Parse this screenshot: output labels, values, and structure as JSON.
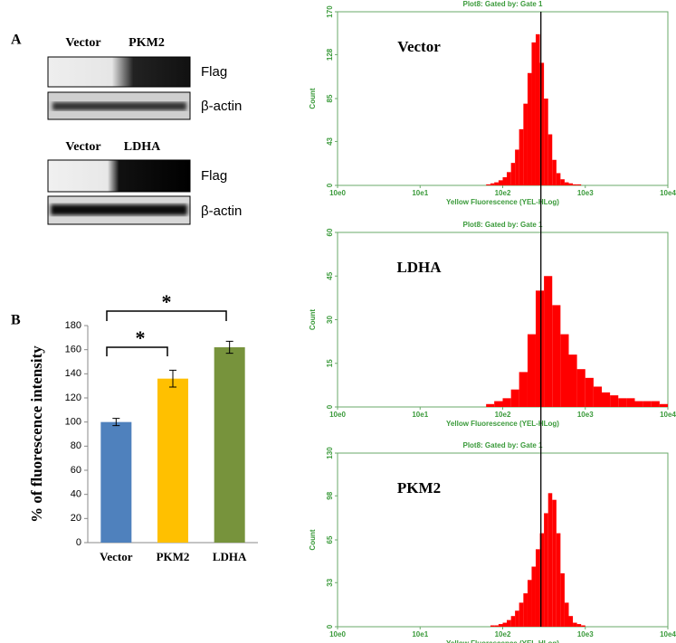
{
  "panels": {
    "a": "A",
    "b": "B"
  },
  "blots": [
    {
      "headers": [
        "Vector",
        "PKM2"
      ],
      "rows": [
        "Flag",
        "β-actin"
      ]
    },
    {
      "headers": [
        "Vector",
        "LDHA"
      ],
      "rows": [
        "Flag",
        "β-actin"
      ]
    }
  ],
  "reference_x": 290,
  "chart_data": [
    {
      "type": "bar",
      "y_label": "% of fluorescence intensity",
      "categories": [
        "Vector",
        "PKM2",
        "LDHA"
      ],
      "values": [
        100,
        136,
        162
      ],
      "errors": [
        3,
        7,
        5
      ],
      "colors": [
        "#4f81bd",
        "#ffc000",
        "#77933c"
      ],
      "ylim": [
        0,
        180
      ],
      "yticks": [
        0,
        20,
        40,
        60,
        80,
        100,
        120,
        140,
        160,
        180
      ],
      "annotations": [
        "*",
        "*"
      ]
    },
    {
      "type": "histogram",
      "title": "Plot8:  Gated by: Gate 1",
      "label": "Vector",
      "x_label": "Yellow Fluorescence (YEL-HLog)",
      "y_label": "Count",
      "x_log": true,
      "color": "#ff0000",
      "xlim": [
        1,
        10000
      ],
      "xticks": [
        {
          "value": 1,
          "label": "10e0"
        },
        {
          "value": 10,
          "label": "10e1"
        },
        {
          "value": 100,
          "label": "10e2"
        },
        {
          "value": 1000,
          "label": "10e3"
        },
        {
          "value": 10000,
          "label": "10e4"
        }
      ],
      "ylim": [
        0,
        170
      ],
      "yticks": [
        0,
        43,
        85,
        128,
        170
      ],
      "bins": [
        63,
        71,
        79,
        89,
        100,
        112,
        126,
        141,
        158,
        178,
        200,
        224,
        251,
        282,
        316,
        355,
        398,
        447,
        501,
        562,
        631,
        708,
        794,
        891,
        1000
      ],
      "counts": [
        1,
        2,
        3,
        5,
        8,
        13,
        22,
        35,
        55,
        80,
        110,
        140,
        148,
        120,
        85,
        50,
        25,
        12,
        6,
        3,
        2,
        1,
        1,
        0
      ]
    },
    {
      "type": "histogram",
      "title": "Plot8:  Gated by: Gate 1",
      "label": "LDHA",
      "x_label": "Yellow Fluorescence (YEL-HLog)",
      "y_label": "Count",
      "x_log": true,
      "color": "#ff0000",
      "xlim": [
        1,
        10000
      ],
      "xticks": [
        {
          "value": 1,
          "label": "10e0"
        },
        {
          "value": 10,
          "label": "10e1"
        },
        {
          "value": 100,
          "label": "10e2"
        },
        {
          "value": 1000,
          "label": "10e3"
        },
        {
          "value": 10000,
          "label": "10e4"
        }
      ],
      "ylim": [
        0,
        60
      ],
      "yticks": [
        0,
        15,
        30,
        45,
        60
      ],
      "bins": [
        63,
        79,
        100,
        126,
        158,
        200,
        251,
        316,
        398,
        501,
        631,
        794,
        1000,
        1259,
        1585,
        1995,
        2512,
        3162,
        3981,
        5012,
        6310,
        7943,
        10000
      ],
      "counts": [
        1,
        2,
        3,
        6,
        12,
        25,
        40,
        45,
        35,
        25,
        18,
        13,
        10,
        7,
        5,
        4,
        3,
        3,
        2,
        2,
        2,
        1
      ]
    },
    {
      "type": "histogram",
      "title": "Plot8:  Gated by: Gate 1",
      "label": "PKM2",
      "x_label": "Yellow Fluorescence (YEL-HLog)",
      "y_label": "Count",
      "x_log": true,
      "color": "#ff0000",
      "xlim": [
        1,
        10000
      ],
      "xticks": [
        {
          "value": 1,
          "label": "10e0"
        },
        {
          "value": 10,
          "label": "10e1"
        },
        {
          "value": 100,
          "label": "10e2"
        },
        {
          "value": 1000,
          "label": "10e3"
        },
        {
          "value": 10000,
          "label": "10e4"
        }
      ],
      "ylim": [
        0,
        130
      ],
      "yticks": [
        0,
        33,
        65,
        98,
        130
      ],
      "bins": [
        63,
        71,
        79,
        89,
        100,
        112,
        126,
        141,
        158,
        178,
        200,
        224,
        251,
        282,
        316,
        355,
        398,
        447,
        501,
        562,
        631,
        708,
        794,
        891,
        1000
      ],
      "counts": [
        0,
        1,
        1,
        2,
        3,
        5,
        8,
        12,
        18,
        25,
        35,
        45,
        58,
        70,
        85,
        100,
        95,
        70,
        40,
        18,
        8,
        3,
        2,
        1
      ]
    }
  ]
}
